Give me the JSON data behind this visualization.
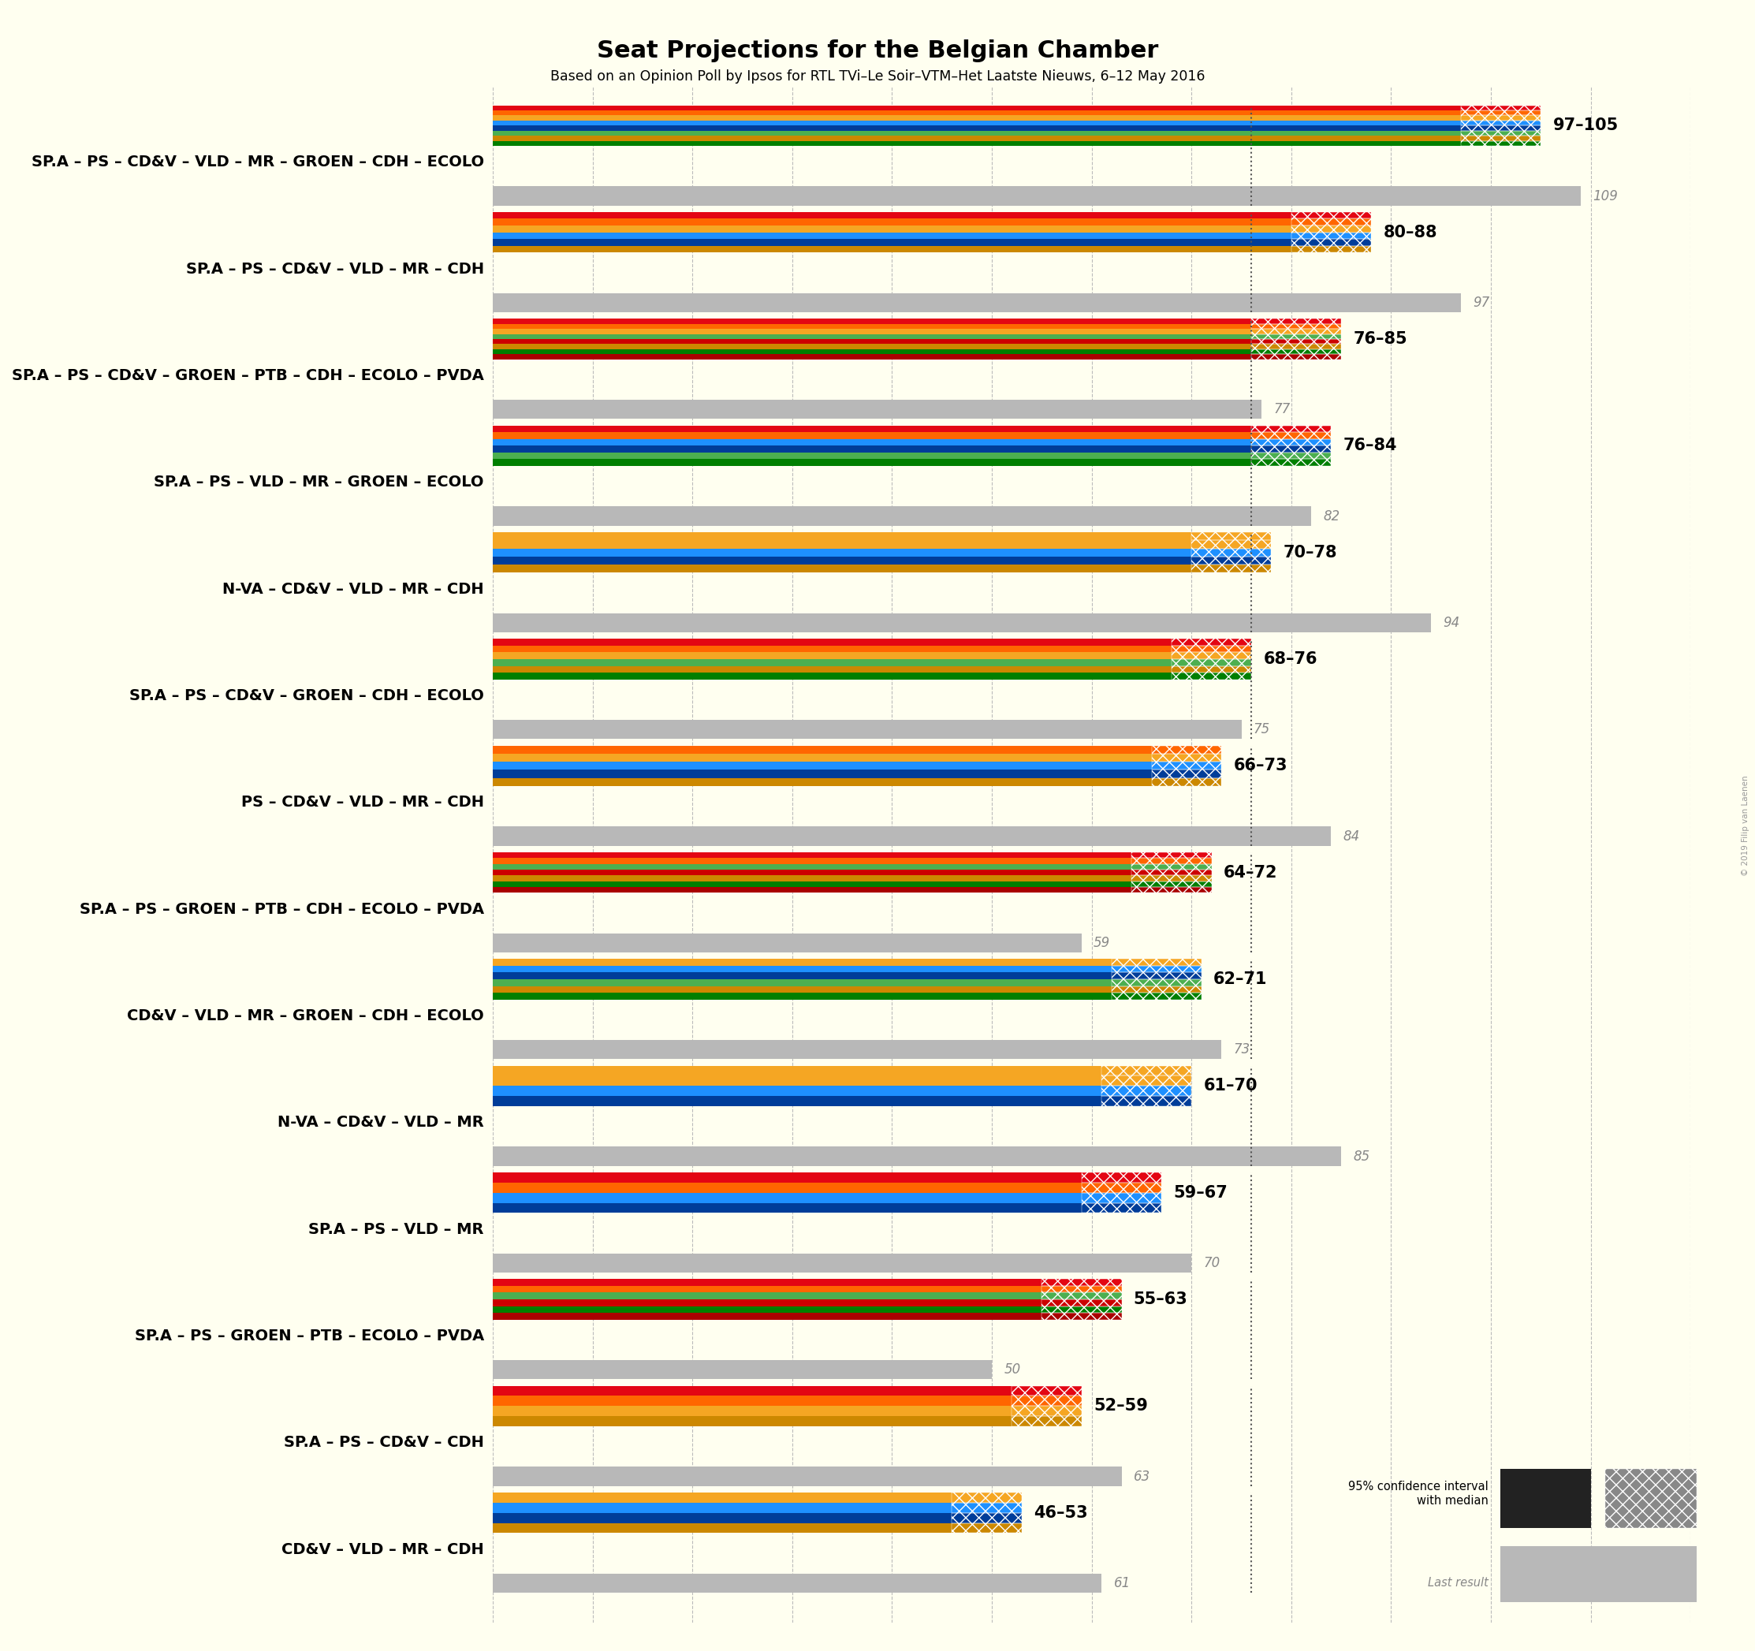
{
  "title": "Seat Projections for the Belgian Chamber",
  "subtitle": "Based on an Opinion Poll by Ipsos for RTL TVi–Le Soir–VTM–Het Laatste Nieuws, 6–12 May 2016",
  "background_color": "#FFFFF0",
  "majority_line": 76,
  "x_max": 120,
  "coalitions": [
    {
      "name": "SP.A – PS – CD&V – VLD – MR – GROEN – CDH – ECOLO",
      "low": 97,
      "high": 105,
      "last_result": 109,
      "parties": [
        "SP.A",
        "PS",
        "CD&V",
        "VLD",
        "MR",
        "GROEN",
        "CDH",
        "ECOLO"
      ]
    },
    {
      "name": "SP.A – PS – CD&V – VLD – MR – CDH",
      "low": 80,
      "high": 88,
      "last_result": 97,
      "parties": [
        "SP.A",
        "PS",
        "CD&V",
        "VLD",
        "MR",
        "CDH"
      ]
    },
    {
      "name": "SP.A – PS – CD&V – GROEN – PTB – CDH – ECOLO – PVDA",
      "low": 76,
      "high": 85,
      "last_result": 77,
      "parties": [
        "SP.A",
        "PS",
        "CD&V",
        "GROEN",
        "PTB",
        "CDH",
        "ECOLO",
        "PVDA"
      ]
    },
    {
      "name": "SP.A – PS – VLD – MR – GROEN – ECOLO",
      "low": 76,
      "high": 84,
      "last_result": 82,
      "parties": [
        "SP.A",
        "PS",
        "VLD",
        "MR",
        "GROEN",
        "ECOLO"
      ]
    },
    {
      "name": "N-VA – CD&V – VLD – MR – CDH",
      "low": 70,
      "high": 78,
      "last_result": 94,
      "parties": [
        "N-VA",
        "CD&V",
        "VLD",
        "MR",
        "CDH"
      ]
    },
    {
      "name": "SP.A – PS – CD&V – GROEN – CDH – ECOLO",
      "low": 68,
      "high": 76,
      "last_result": 75,
      "parties": [
        "SP.A",
        "PS",
        "CD&V",
        "GROEN",
        "CDH",
        "ECOLO"
      ]
    },
    {
      "name": "PS – CD&V – VLD – MR – CDH",
      "low": 66,
      "high": 73,
      "last_result": 84,
      "parties": [
        "PS",
        "CD&V",
        "VLD",
        "MR",
        "CDH"
      ]
    },
    {
      "name": "SP.A – PS – GROEN – PTB – CDH – ECOLO – PVDA",
      "low": 64,
      "high": 72,
      "last_result": 59,
      "parties": [
        "SP.A",
        "PS",
        "GROEN",
        "PTB",
        "CDH",
        "ECOLO",
        "PVDA"
      ]
    },
    {
      "name": "CD&V – VLD – MR – GROEN – CDH – ECOLO",
      "low": 62,
      "high": 71,
      "last_result": 73,
      "parties": [
        "CD&V",
        "VLD",
        "MR",
        "GROEN",
        "CDH",
        "ECOLO"
      ]
    },
    {
      "name": "N-VA – CD&V – VLD – MR",
      "low": 61,
      "high": 70,
      "last_result": 85,
      "parties": [
        "N-VA",
        "CD&V",
        "VLD",
        "MR"
      ]
    },
    {
      "name": "SP.A – PS – VLD – MR",
      "low": 59,
      "high": 67,
      "last_result": 70,
      "parties": [
        "SP.A",
        "PS",
        "VLD",
        "MR"
      ]
    },
    {
      "name": "SP.A – PS – GROEN – PTB – ECOLO – PVDA",
      "low": 55,
      "high": 63,
      "last_result": 50,
      "parties": [
        "SP.A",
        "PS",
        "GROEN",
        "PTB",
        "ECOLO",
        "PVDA"
      ]
    },
    {
      "name": "SP.A – PS – CD&V – CDH",
      "low": 52,
      "high": 59,
      "last_result": 63,
      "parties": [
        "SP.A",
        "PS",
        "CD&V",
        "CDH"
      ]
    },
    {
      "name": "CD&V – VLD – MR – CDH",
      "low": 46,
      "high": 53,
      "last_result": 61,
      "parties": [
        "CD&V",
        "VLD",
        "MR",
        "CDH"
      ]
    }
  ],
  "party_colors": {
    "SP.A": "#E30613",
    "PS": "#FF6600",
    "CD&V": "#F5A623",
    "VLD": "#1E90FF",
    "MR": "#003D99",
    "GROEN": "#4CAF50",
    "CDH": "#CC8800",
    "ECOLO": "#007F00",
    "N-VA": "#F5A623",
    "PTB": "#CC0000",
    "PVDA": "#AA0000"
  }
}
